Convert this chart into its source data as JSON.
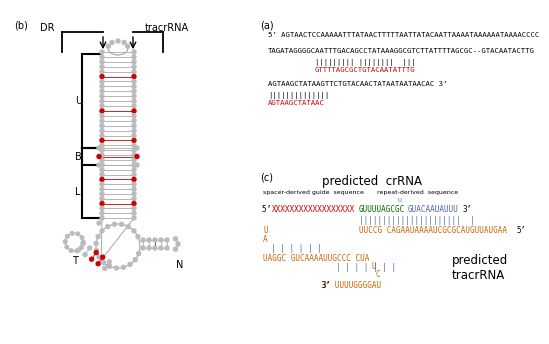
{
  "panel_b_label": "(b)",
  "panel_a_label": "(a)",
  "panel_c_label": "(c)",
  "dr_label": "DR",
  "tracrrna_label": "tracrRNA",
  "U_label": "U",
  "B_label": "B",
  "L_label": "L",
  "N_label": "N",
  "T_label": "T",
  "line1_black": "5’ AGTAACTCCAAAAATTTATAACTTTTTAATTATACAATTAAAATAAAAAATAAAACCCC",
  "line2_black": "TAGATAGGGGCAATTTGACAGCCTATAAAGGCGTCTTATTTTAGCGC--GTACAATACTTG",
  "line2_pipes": "          ||||||||| ||||||||  |||",
  "line2_red": "GTTTTAGCGCTGTACAATATTTG",
  "line3_black": "AGTAAGCTATAAGTTCTGTACAACTATAATAATAACAC 3’",
  "line3_pipes": "||||||||||||||",
  "line3_red": "AGTAAGCTATAAC",
  "predicted_crRNA": "predicted  crRNA",
  "spacer_label": "spacer-derived guide  sequence",
  "repeat_label": "repeat-derived  sequence",
  "bg_color": "#ffffff",
  "black": "#000000",
  "red": "#cc0000",
  "orange": "#cc6600",
  "green": "#006600",
  "blue": "#4466aa",
  "cyan": "#009999",
  "gray_node": "#bbbbbb",
  "gray_line": "#999999"
}
